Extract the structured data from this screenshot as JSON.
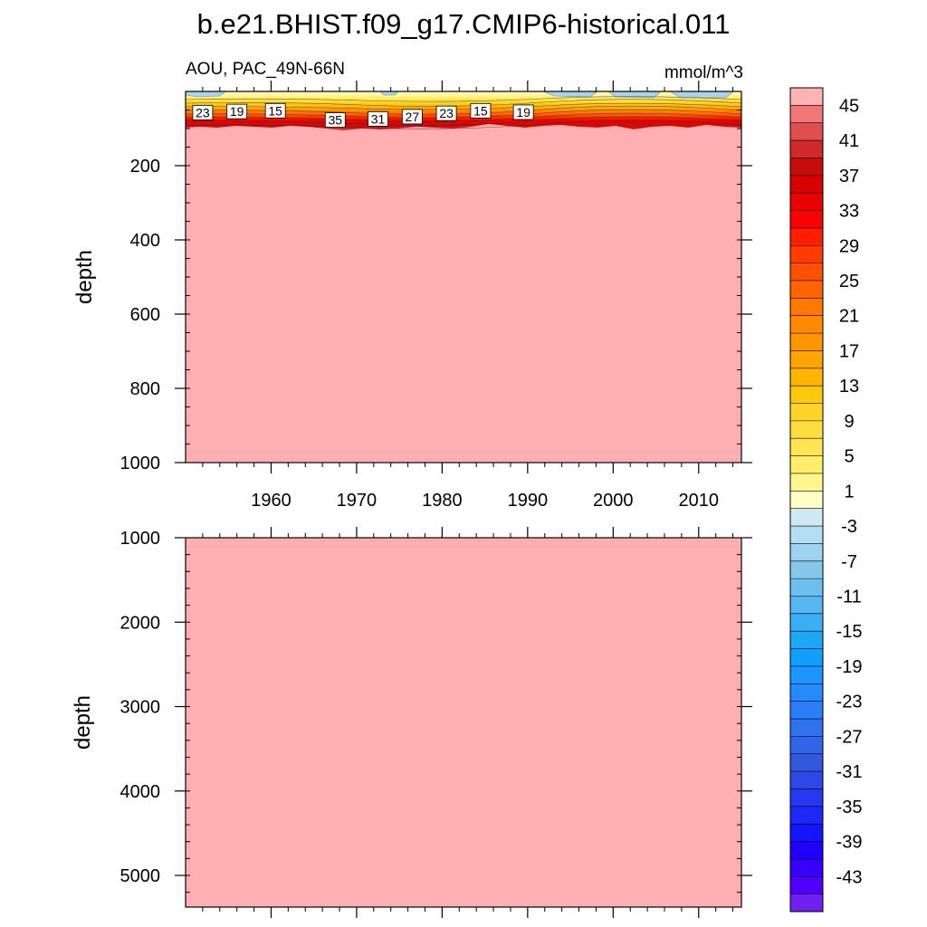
{
  "chart_data": {
    "type": "heatmap",
    "title": "b.e21.BHIST.f09_g17.CMIP6-historical.011",
    "subtitle_left": "AOU, PAC_49N-66N",
    "subtitle_right": "mmol/m^3",
    "fill_color": "#ffafaf",
    "xlim": [
      1950,
      2015
    ],
    "x_ticks": [
      1960,
      1970,
      1980,
      1990,
      2000,
      2010
    ],
    "panels": [
      {
        "name": "upper",
        "ylabel": "depth",
        "ylim": [
          0,
          1000
        ],
        "y_ticks": [
          200,
          400,
          600,
          800,
          1000
        ],
        "contour_labels": [
          {
            "value": "23",
            "x": 1952,
            "y": 57
          },
          {
            "value": "19",
            "x": 1956,
            "y": 54
          },
          {
            "value": "15",
            "x": 1960.5,
            "y": 52
          },
          {
            "value": "35",
            "x": 1967.5,
            "y": 77
          },
          {
            "value": "31",
            "x": 1972.5,
            "y": 74
          },
          {
            "value": "27",
            "x": 1976.5,
            "y": 68
          },
          {
            "value": "23",
            "x": 1980.5,
            "y": 59
          },
          {
            "value": "15",
            "x": 1984.5,
            "y": 52
          },
          {
            "value": "19",
            "x": 1989.5,
            "y": 56
          }
        ]
      },
      {
        "name": "lower",
        "ylabel": "depth",
        "ylim": [
          1000,
          5375
        ],
        "y_ticks": [
          1000,
          2000,
          3000,
          4000,
          5000
        ]
      }
    ],
    "colorbar": {
      "labels": [
        "45",
        "41",
        "37",
        "33",
        "29",
        "25",
        "21",
        "17",
        "13",
        "9",
        "5",
        "1",
        "-3",
        "-7",
        "-11",
        "-15",
        "-19",
        "-23",
        "-27",
        "-31",
        "-35",
        "-39",
        "-43"
      ],
      "colors": [
        "#ffb3b3",
        "#f07878",
        "#e04f4f",
        "#d12828",
        "#c80c0c",
        "#d90000",
        "#ea0000",
        "#ff0000",
        "#ff1e00",
        "#ff3c00",
        "#ff5000",
        "#ff6400",
        "#ff7800",
        "#ff8a00",
        "#ff9600",
        "#ffa500",
        "#ffb400",
        "#ffc60e",
        "#ffd42a",
        "#ffdd3c",
        "#ffe552",
        "#ffee6a",
        "#fff68e",
        "#ffffc4",
        "#cfe8f3",
        "#b4def2",
        "#9cd3ee",
        "#84c9ec",
        "#6cc0ed",
        "#55b7ef",
        "#3aaff3",
        "#1ea7f7",
        "#0ea0ff",
        "#1a96ff",
        "#238aff",
        "#2a7ef8",
        "#2f72ef",
        "#3366e6",
        "#3358e0",
        "#2e48e8",
        "#2638f0",
        "#1d28f8",
        "#1414ff",
        "#1e00ff",
        "#3500ff",
        "#5000ff",
        "#7020f0"
      ]
    }
  }
}
